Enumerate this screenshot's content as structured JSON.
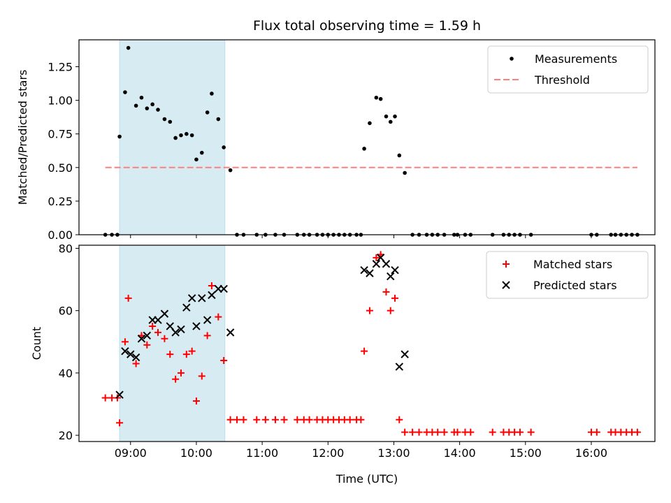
{
  "chart_data": [
    {
      "type": "scatter",
      "title": "Flux total observing time = 1.59 h",
      "xlabel": "",
      "ylabel": "Matched/Predicted stars",
      "xlim": [
        "08:13",
        "16:58"
      ],
      "ylim": [
        0,
        1.45
      ],
      "yticks": [
        "0.00",
        "0.25",
        "0.50",
        "0.75",
        "1.00",
        "1.25"
      ],
      "shaded_region": [
        "08:50",
        "10:26"
      ],
      "legend_position": "top-right",
      "series": [
        {
          "name": "Measurements",
          "marker": "dot",
          "color": "#000000",
          "points": [
            [
              "08:37",
              0
            ],
            [
              "08:43",
              0
            ],
            [
              "08:48",
              0
            ],
            [
              "08:50",
              0.73
            ],
            [
              "08:55",
              1.06
            ],
            [
              "08:58",
              1.39
            ],
            [
              "09:05",
              0.96
            ],
            [
              "09:10",
              1.02
            ],
            [
              "09:15",
              0.94
            ],
            [
              "09:20",
              0.97
            ],
            [
              "09:25",
              0.93
            ],
            [
              "09:31",
              0.86
            ],
            [
              "09:36",
              0.84
            ],
            [
              "09:41",
              0.72
            ],
            [
              "09:46",
              0.74
            ],
            [
              "09:51",
              0.75
            ],
            [
              "09:56",
              0.74
            ],
            [
              "10:00",
              0.56
            ],
            [
              "10:05",
              0.61
            ],
            [
              "10:10",
              0.91
            ],
            [
              "10:14",
              1.05
            ],
            [
              "10:20",
              0.86
            ],
            [
              "10:25",
              0.65
            ],
            [
              "10:31",
              0.48
            ],
            [
              "10:37",
              0
            ],
            [
              "10:43",
              0
            ],
            [
              "10:55",
              0
            ],
            [
              "11:03",
              0
            ],
            [
              "11:12",
              0
            ],
            [
              "11:20",
              0
            ],
            [
              "11:32",
              0
            ],
            [
              "11:38",
              0
            ],
            [
              "11:43",
              0
            ],
            [
              "11:50",
              0
            ],
            [
              "11:55",
              0
            ],
            [
              "12:00",
              0
            ],
            [
              "12:05",
              0
            ],
            [
              "12:10",
              0
            ],
            [
              "12:15",
              0
            ],
            [
              "12:20",
              0
            ],
            [
              "12:26",
              0
            ],
            [
              "12:30",
              0
            ],
            [
              "12:33",
              0.64
            ],
            [
              "12:38",
              0.83
            ],
            [
              "12:44",
              1.02
            ],
            [
              "12:48",
              1.01
            ],
            [
              "12:53",
              0.88
            ],
            [
              "12:57",
              0.84
            ],
            [
              "13:01",
              0.88
            ],
            [
              "13:05",
              0.59
            ],
            [
              "13:10",
              0.46
            ],
            [
              "13:17",
              0
            ],
            [
              "13:23",
              0
            ],
            [
              "13:30",
              0
            ],
            [
              "13:35",
              0
            ],
            [
              "13:40",
              0
            ],
            [
              "13:46",
              0
            ],
            [
              "13:55",
              0
            ],
            [
              "13:58",
              0
            ],
            [
              "14:05",
              0
            ],
            [
              "14:10",
              0
            ],
            [
              "14:30",
              0
            ],
            [
              "14:40",
              0
            ],
            [
              "14:45",
              0
            ],
            [
              "14:50",
              0
            ],
            [
              "14:55",
              0
            ],
            [
              "15:05",
              0
            ],
            [
              "16:00",
              0
            ],
            [
              "16:05",
              0
            ],
            [
              "16:18",
              0
            ],
            [
              "16:22",
              0
            ],
            [
              "16:27",
              0
            ],
            [
              "16:32",
              0
            ],
            [
              "16:37",
              0
            ],
            [
              "16:42",
              0
            ]
          ]
        },
        {
          "name": "Threshold",
          "type": "line",
          "style": "dashed",
          "color": "#ff7f7f",
          "points": [
            [
              "08:37",
              0.5
            ],
            [
              "16:42",
              0.5
            ]
          ]
        }
      ]
    },
    {
      "type": "scatter",
      "title": "",
      "xlabel": "Time (UTC)",
      "ylabel": "Count",
      "xlim": [
        "08:13",
        "16:58"
      ],
      "ylim": [
        18,
        81
      ],
      "yticks": [
        "20",
        "40",
        "60",
        "80"
      ],
      "xticks": [
        "09:00",
        "10:00",
        "11:00",
        "12:00",
        "13:00",
        "14:00",
        "15:00",
        "16:00"
      ],
      "shaded_region": [
        "08:50",
        "10:26"
      ],
      "legend_position": "top-right",
      "series": [
        {
          "name": "Matched stars",
          "marker": "plus",
          "color": "#ff0000",
          "points": [
            [
              "08:37",
              32
            ],
            [
              "08:43",
              32
            ],
            [
              "08:48",
              32
            ],
            [
              "08:50",
              24
            ],
            [
              "08:55",
              50
            ],
            [
              "08:58",
              64
            ],
            [
              "09:05",
              43
            ],
            [
              "09:10",
              52
            ],
            [
              "09:15",
              49
            ],
            [
              "09:20",
              55
            ],
            [
              "09:25",
              53
            ],
            [
              "09:31",
              51
            ],
            [
              "09:36",
              46
            ],
            [
              "09:41",
              38
            ],
            [
              "09:46",
              40
            ],
            [
              "09:51",
              46
            ],
            [
              "09:56",
              47
            ],
            [
              "10:00",
              31
            ],
            [
              "10:05",
              39
            ],
            [
              "10:10",
              52
            ],
            [
              "10:14",
              68
            ],
            [
              "10:20",
              58
            ],
            [
              "10:25",
              44
            ],
            [
              "10:31",
              25
            ],
            [
              "10:37",
              25
            ],
            [
              "10:43",
              25
            ],
            [
              "10:55",
              25
            ],
            [
              "11:03",
              25
            ],
            [
              "11:12",
              25
            ],
            [
              "11:20",
              25
            ],
            [
              "11:32",
              25
            ],
            [
              "11:38",
              25
            ],
            [
              "11:43",
              25
            ],
            [
              "11:50",
              25
            ],
            [
              "11:55",
              25
            ],
            [
              "12:00",
              25
            ],
            [
              "12:05",
              25
            ],
            [
              "12:10",
              25
            ],
            [
              "12:15",
              25
            ],
            [
              "12:20",
              25
            ],
            [
              "12:26",
              25
            ],
            [
              "12:30",
              25
            ],
            [
              "12:33",
              47
            ],
            [
              "12:38",
              60
            ],
            [
              "12:44",
              77
            ],
            [
              "12:48",
              78
            ],
            [
              "12:53",
              66
            ],
            [
              "12:57",
              60
            ],
            [
              "13:01",
              64
            ],
            [
              "13:05",
              25
            ],
            [
              "13:10",
              21
            ],
            [
              "13:17",
              21
            ],
            [
              "13:23",
              21
            ],
            [
              "13:30",
              21
            ],
            [
              "13:35",
              21
            ],
            [
              "13:40",
              21
            ],
            [
              "13:46",
              21
            ],
            [
              "13:55",
              21
            ],
            [
              "13:58",
              21
            ],
            [
              "14:05",
              21
            ],
            [
              "14:10",
              21
            ],
            [
              "14:30",
              21
            ],
            [
              "14:40",
              21
            ],
            [
              "14:45",
              21
            ],
            [
              "14:50",
              21
            ],
            [
              "14:55",
              21
            ],
            [
              "15:05",
              21
            ],
            [
              "16:00",
              21
            ],
            [
              "16:05",
              21
            ],
            [
              "16:18",
              21
            ],
            [
              "16:22",
              21
            ],
            [
              "16:27",
              21
            ],
            [
              "16:32",
              21
            ],
            [
              "16:37",
              21
            ],
            [
              "16:42",
              21
            ]
          ]
        },
        {
          "name": "Predicted stars",
          "marker": "x",
          "color": "#000000",
          "points": [
            [
              "08:50",
              33
            ],
            [
              "08:55",
              47
            ],
            [
              "09:00",
              46
            ],
            [
              "09:05",
              45
            ],
            [
              "09:10",
              51
            ],
            [
              "09:15",
              52
            ],
            [
              "09:20",
              57
            ],
            [
              "09:25",
              57
            ],
            [
              "09:31",
              59
            ],
            [
              "09:36",
              55
            ],
            [
              "09:41",
              53
            ],
            [
              "09:46",
              54
            ],
            [
              "09:51",
              61
            ],
            [
              "09:56",
              64
            ],
            [
              "10:00",
              55
            ],
            [
              "10:05",
              64
            ],
            [
              "10:10",
              57
            ],
            [
              "10:14",
              65
            ],
            [
              "10:20",
              67
            ],
            [
              "10:25",
              67
            ],
            [
              "10:31",
              53
            ],
            [
              "12:33",
              73
            ],
            [
              "12:38",
              72
            ],
            [
              "12:44",
              75
            ],
            [
              "12:48",
              77
            ],
            [
              "12:53",
              75
            ],
            [
              "12:57",
              71
            ],
            [
              "13:01",
              73
            ],
            [
              "13:05",
              42
            ],
            [
              "13:10",
              46
            ]
          ]
        }
      ]
    }
  ]
}
